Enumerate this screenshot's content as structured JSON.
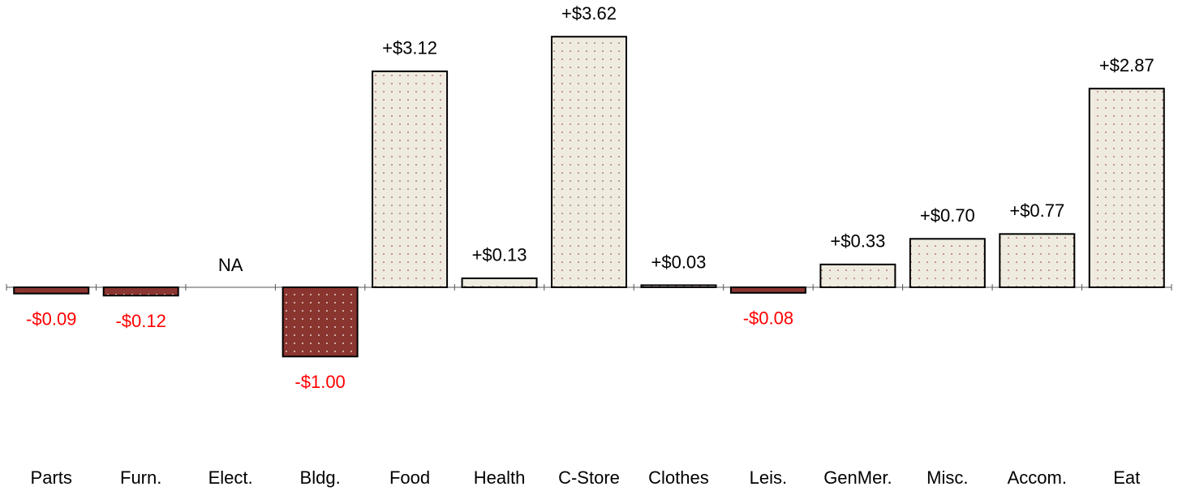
{
  "chart_data": {
    "type": "bar",
    "categories": [
      "Parts",
      "Furn.",
      "Elect.",
      "Bldg.",
      "Food",
      "Health",
      "C-Store",
      "Clothes",
      "Leis.",
      "GenMer.",
      "Misc.",
      "Accom.",
      "Eat"
    ],
    "values": [
      -0.09,
      -0.12,
      null,
      -1.0,
      3.12,
      0.13,
      3.62,
      0.03,
      -0.08,
      0.33,
      0.7,
      0.77,
      2.87
    ],
    "value_labels": [
      "-$0.09",
      "-$0.12",
      "NA",
      "-$1.00",
      "+$3.12",
      "+$0.13",
      "+$3.62",
      "+$0.03",
      "-$0.08",
      "+$0.33",
      "+$0.70",
      "+$0.77",
      "+$2.87"
    ],
    "positive_color": "#efebe0",
    "negative_color": "#8b3530",
    "negative_label_color": "#ff0000"
  }
}
